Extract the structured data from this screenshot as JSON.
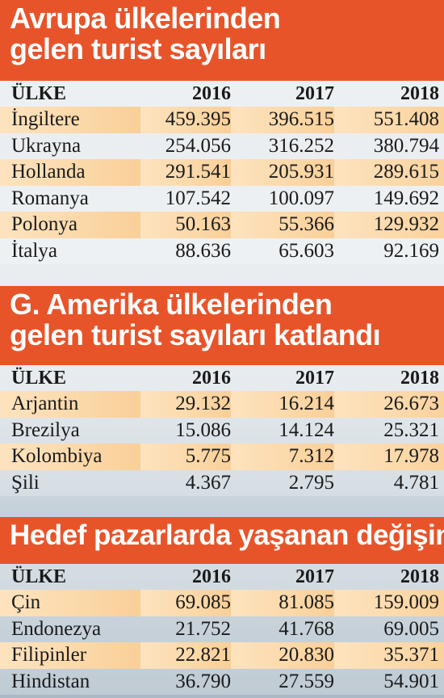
{
  "sections": [
    {
      "title_lines": [
        "Avrupa ülkelerinden",
        "gelen turist sayıları"
      ],
      "header": {
        "country": "ÜLKE",
        "y1": "2016",
        "y2": "2017",
        "y3": "2018"
      },
      "rows": [
        {
          "country": "İngiltere",
          "v2016": "459.395",
          "v2017": "396.515",
          "v2018": "551.408"
        },
        {
          "country": "Ukrayna",
          "v2016": "254.056",
          "v2017": "316.252",
          "v2018": "380.794"
        },
        {
          "country": "Hollanda",
          "v2016": "291.541",
          "v2017": "205.931",
          "v2018": "289.615"
        },
        {
          "country": "Romanya",
          "v2016": "107.542",
          "v2017": "100.097",
          "v2018": "149.692"
        },
        {
          "country": "Polonya",
          "v2016": "50.163",
          "v2017": "55.366",
          "v2018": "129.932"
        },
        {
          "country": "İtalya",
          "v2016": "88.636",
          "v2017": "65.603",
          "v2018": "92.169"
        }
      ]
    },
    {
      "title_lines": [
        "G. Amerika ülkelerinden",
        "gelen turist sayıları katlandı"
      ],
      "header": {
        "country": "ÜLKE",
        "y1": "2016",
        "y2": "2017",
        "y3": "2018"
      },
      "rows": [
        {
          "country": "Arjantin",
          "v2016": "29.132",
          "v2017": "16.214",
          "v2018": "26.673"
        },
        {
          "country": "Brezilya",
          "v2016": "15.086",
          "v2017": "14.124",
          "v2018": "25.321"
        },
        {
          "country": "Kolombiya",
          "v2016": "5.775",
          "v2017": "7.312",
          "v2018": "17.978"
        },
        {
          "country": "Şili",
          "v2016": "4.367",
          "v2017": "2.795",
          "v2018": "4.781"
        }
      ]
    },
    {
      "title_lines": [
        "Hedef pazarlarda yaşanan değişim"
      ],
      "header": {
        "country": "ÜLKE",
        "y1": "2016",
        "y2": "2017",
        "y3": "2018"
      },
      "rows": [
        {
          "country": "Çin",
          "v2016": "69.085",
          "v2017": "81.085",
          "v2018": "159.009"
        },
        {
          "country": "Endonezya",
          "v2016": "21.752",
          "v2017": "41.768",
          "v2018": "69.005"
        },
        {
          "country": "Filipinler",
          "v2016": "22.821",
          "v2017": "20.830",
          "v2018": "35.371"
        },
        {
          "country": "Hindistan",
          "v2016": "36.790",
          "v2017": "27.559",
          "v2018": "54.901"
        }
      ]
    }
  ],
  "colors": {
    "banner": "#e8542a",
    "row_highlight": "#fbd8a8"
  }
}
